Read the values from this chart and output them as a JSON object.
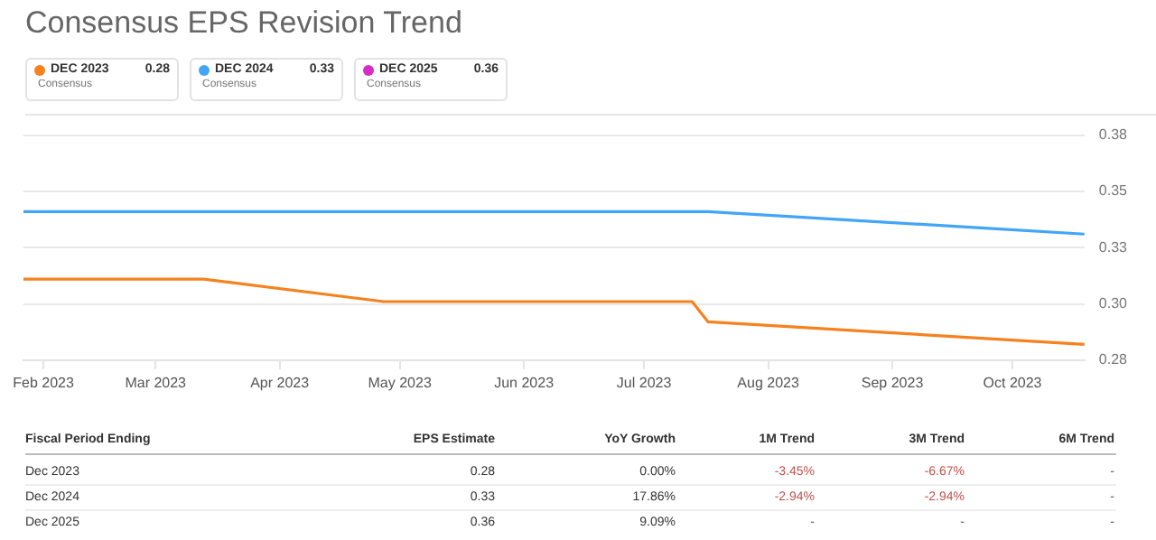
{
  "chart_data": [
    {
      "type": "line",
      "title": "Consensus EPS Revision Trend",
      "legend_title": "Consensus",
      "legend": "top left",
      "grid": "y",
      "marker": "none",
      "xlim": [
        "2023-01-27",
        "2023-10-19"
      ],
      "xticks": [
        {
          "value": "2023-02-01",
          "label": "Feb 2023"
        },
        {
          "value": "2023-03-01",
          "label": "Mar 2023"
        },
        {
          "value": "2023-04-01",
          "label": "Apr 2023"
        },
        {
          "value": "2023-05-01",
          "label": "May 2023"
        },
        {
          "value": "2023-06-01",
          "label": "Jun 2023"
        },
        {
          "value": "2023-07-01",
          "label": "Jul 2023"
        },
        {
          "value": "2023-08-01",
          "label": "Aug 2023"
        },
        {
          "value": "2023-09-01",
          "label": "Sep 2023"
        },
        {
          "value": "2023-10-01",
          "label": "Oct 2023"
        }
      ],
      "ylim": [
        0.275,
        0.375
      ],
      "yticks": [
        {
          "value": 0.275,
          "label": "0.28"
        },
        {
          "value": 0.3,
          "label": "0.30"
        },
        {
          "value": 0.325,
          "label": "0.33"
        },
        {
          "value": 0.35,
          "label": "0.35"
        },
        {
          "value": 0.375,
          "label": "0.38"
        }
      ],
      "annotations": [
        "0.28",
        "0.33",
        "0.36"
      ],
      "series": [
        {
          "name": "DEC 2023",
          "color": "#f5821f",
          "x": [
            "2023-01-27",
            "2023-03-13",
            "2023-04-27",
            "2023-07-13",
            "2023-07-17",
            "2023-10-19"
          ],
          "values": [
            0.311,
            0.311,
            0.301,
            0.301,
            0.292,
            0.282
          ]
        },
        {
          "name": "DEC 2024",
          "color": "#42a5f5",
          "x": [
            "2023-01-27",
            "2023-07-17",
            "2023-10-19"
          ],
          "values": [
            0.341,
            0.341,
            0.331
          ]
        },
        {
          "name": "DEC 2025",
          "color": "#d62bc7"
        }
      ]
    },
    {
      "type": "other",
      "categories": [
        "Fiscal Period Ending",
        "EPS Estimate",
        "YoY Growth",
        "1M Trend",
        "3M Trend",
        "6M Trend"
      ],
      "annotations": [
        "Dec 2023",
        "0.28",
        "0.00%",
        "-3.45%",
        "-6.67%",
        "-",
        "Dec 2024",
        "0.33",
        "17.86%",
        "-2.94%",
        "-2.94%",
        "-",
        "Dec 2025",
        "0.36",
        "9.09%",
        "-",
        "-",
        "-"
      ],
      "colors": [
        "#333333",
        "#333333",
        "#333333",
        "#c0504d",
        "#c0504d",
        "#555555",
        "#333333",
        "#333333",
        "#333333",
        "#c0504d",
        "#c0504d",
        "#555555",
        "#333333",
        "#333333",
        "#333333",
        "#555555",
        "#555555",
        "#555555"
      ]
    }
  ]
}
